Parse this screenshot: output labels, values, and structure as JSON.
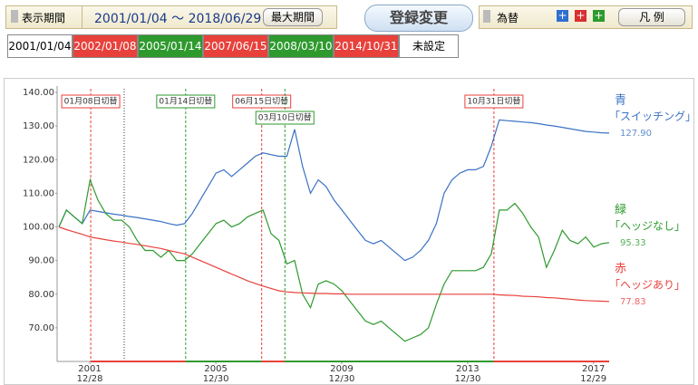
{
  "header": {
    "period_label": "表示期間",
    "range": "2001/01/04 〜 2018/06/29",
    "max_button": "最大期間",
    "register_button": "登録変更",
    "fx_label": "為替",
    "legend_button": "凡 例",
    "start_box": "2001/01/04",
    "unset_box": "未設定"
  },
  "chart_data": {
    "type": "line",
    "x": [
      "2001/01/04",
      "2001/04/01",
      "2001/07/01",
      "2001/10/01",
      "2002/01/01",
      "2002/04/01",
      "2002/07/01",
      "2002/10/01",
      "2003/01/01",
      "2003/04/01",
      "2003/07/01",
      "2003/10/01",
      "2004/01/01",
      "2004/04/01",
      "2004/07/01",
      "2004/10/01",
      "2005/01/01",
      "2005/04/01",
      "2005/07/01",
      "2005/10/01",
      "2006/01/01",
      "2006/04/01",
      "2006/07/01",
      "2006/10/01",
      "2007/01/01",
      "2007/04/01",
      "2007/07/01",
      "2007/10/01",
      "2008/01/01",
      "2008/04/01",
      "2008/07/01",
      "2008/10/01",
      "2009/01/01",
      "2009/04/01",
      "2009/07/01",
      "2009/10/01",
      "2010/01/01",
      "2010/04/01",
      "2010/07/01",
      "2010/10/01",
      "2011/01/01",
      "2011/04/01",
      "2011/07/01",
      "2011/10/01",
      "2012/01/01",
      "2012/04/01",
      "2012/07/01",
      "2012/10/01",
      "2013/01/01",
      "2013/04/01",
      "2013/07/01",
      "2013/10/01",
      "2014/01/01",
      "2014/04/01",
      "2014/07/01",
      "2014/10/01",
      "2015/01/01",
      "2015/04/01",
      "2015/07/01",
      "2015/10/01",
      "2016/01/01",
      "2016/04/01",
      "2016/07/01",
      "2016/10/01",
      "2017/01/01",
      "2017/04/01",
      "2017/07/01",
      "2017/10/01",
      "2018/01/01",
      "2018/04/01",
      "2018/06/29"
    ],
    "xlim": [
      "2001/01/04",
      "2018/06/29"
    ],
    "ylim": [
      60,
      140
    ],
    "yticks": [
      {
        "value": 140,
        "label": "140.00"
      },
      {
        "value": 130,
        "label": "130.00"
      },
      {
        "value": 120,
        "label": "120.00"
      },
      {
        "value": 110,
        "label": "110.00"
      },
      {
        "value": 100,
        "label": "100.00"
      },
      {
        "value": 90,
        "label": "90.00"
      },
      {
        "value": 80,
        "label": "80.00"
      },
      {
        "value": 70,
        "label": "70.00"
      }
    ],
    "xticks": [
      {
        "value": "2001/12/28",
        "label": "2001",
        "label2": "12/28"
      },
      {
        "value": "2005/12/30",
        "label": "2005",
        "label2": "12/30"
      },
      {
        "value": "2009/12/30",
        "label": "2009",
        "label2": "12/30"
      },
      {
        "value": "2013/12/30",
        "label": "2013",
        "label2": "12/30"
      },
      {
        "value": "2017/12/29",
        "label": "2017",
        "label2": "12/29"
      }
    ],
    "switches": [
      {
        "date": "2002/01/08",
        "label": "01月08日切替",
        "color": "#e8413c"
      },
      {
        "date": "2005/01/14",
        "label": "01月14日切替",
        "color": "#2e9a2e"
      },
      {
        "date": "2007/06/15",
        "label": "06月15日切替",
        "color": "#e8413c"
      },
      {
        "date": "2008/03/10",
        "label": "03月10日切替",
        "color": "#2e9a2e"
      },
      {
        "date": "2014/10/31",
        "label": "10月31日切替",
        "color": "#e8413c"
      }
    ],
    "series": [
      {
        "name": "青",
        "label": "「スイッチング」",
        "end_label": "127.90",
        "color": "#3a72c4",
        "values": [
          100,
          105,
          103,
          101,
          105,
          104.6,
          104.2,
          103.8,
          103.5,
          103.1,
          102.8,
          102.4,
          102,
          101.6,
          101,
          100.5,
          101,
          104,
          108,
          112,
          116,
          117,
          115,
          117,
          119,
          121,
          122,
          121.5,
          121,
          121,
          129,
          118,
          110,
          114,
          112,
          108,
          105,
          102,
          99,
          96,
          95,
          96,
          94,
          92,
          90,
          91,
          93,
          96,
          101,
          110,
          114,
          116,
          117,
          117,
          118,
          124,
          131.8,
          131.6,
          131.4,
          131.2,
          131,
          130.7,
          130.3,
          130,
          129.6,
          129.2,
          128.8,
          128.4,
          128.2,
          128,
          127.9
        ]
      },
      {
        "name": "緑",
        "label": "「ヘッジなし」",
        "end_label": "95.33",
        "color": "#2e9a2e",
        "values": [
          100,
          105,
          103,
          101,
          114,
          108,
          104,
          102,
          102,
          100,
          96,
          93,
          93,
          91,
          93,
          90,
          90,
          92,
          95,
          98,
          101,
          102,
          100,
          101,
          103,
          104,
          105,
          98,
          96,
          89,
          90,
          80,
          76,
          83,
          84,
          83,
          81,
          78,
          75,
          72,
          71,
          72,
          70,
          68,
          66,
          67,
          68,
          70,
          77,
          83,
          87,
          87,
          87,
          87,
          88,
          92,
          105,
          105,
          107,
          104,
          100,
          97,
          88,
          93,
          99,
          96,
          95,
          97,
          94,
          95,
          95.33
        ]
      },
      {
        "name": "赤",
        "label": "「ヘッジあり」",
        "end_label": "77.83",
        "color": "#e8413c",
        "values": [
          100,
          99.2,
          98.5,
          97.8,
          97,
          96.6,
          96.2,
          95.8,
          95.5,
          95.1,
          94.8,
          94.4,
          94,
          93.6,
          93,
          92.5,
          92,
          91,
          90,
          89,
          88,
          87,
          86,
          85,
          84,
          83.2,
          82.4,
          81.7,
          81,
          80.7,
          80.5,
          80.4,
          80.3,
          80.2,
          80.2,
          80.1,
          80.1,
          80,
          80,
          80,
          80,
          80,
          80,
          80,
          80,
          80,
          80,
          80,
          80,
          80,
          80,
          80,
          80,
          80,
          80,
          80,
          79.8,
          79.7,
          79.6,
          79.4,
          79.3,
          79.2,
          79,
          78.9,
          78.7,
          78.5,
          78.3,
          78.1,
          78,
          77.9,
          77.83
        ]
      }
    ]
  }
}
